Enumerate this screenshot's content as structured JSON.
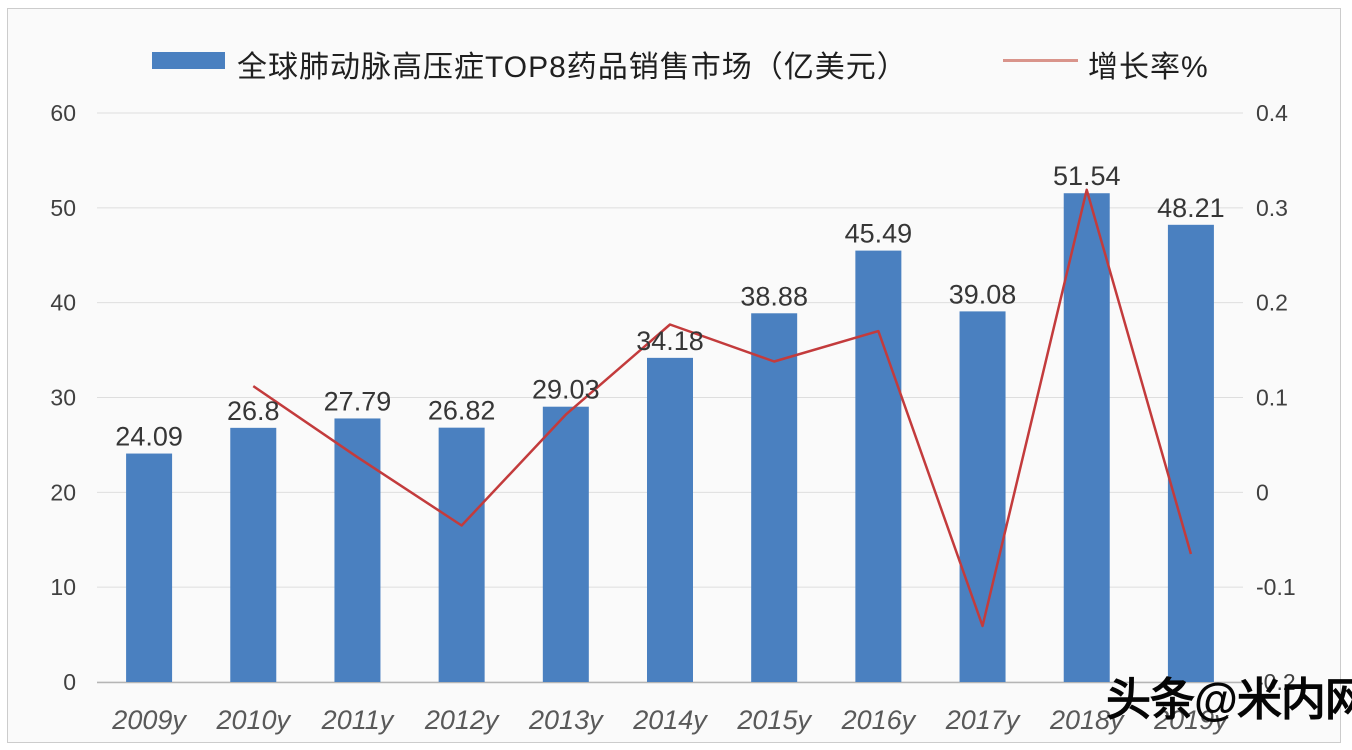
{
  "legend": {
    "bar_label": "全球肺动脉高压症TOP8药品销售市场（亿美元）",
    "line_label": "增长率%"
  },
  "watermark": "头条@米内网",
  "colors": {
    "bar": "#4a80c0",
    "line": "#c33b3c",
    "legend_line": "#d9948b",
    "grid": "#dedede",
    "axis": "#b5b5b5",
    "tick_text": "#404040",
    "category_text": "#595959",
    "data_label": "#363636",
    "frame_bg": "#fafafa",
    "frame_border": "#cccccc"
  },
  "chart_data": {
    "type": "bar",
    "categories": [
      "2009y",
      "2010y",
      "2011y",
      "2012y",
      "2013y",
      "2014y",
      "2015y",
      "2016y",
      "2017y",
      "2018y",
      "2019y"
    ],
    "series": [
      {
        "name": "全球肺动脉高压症TOP8药品销售市场（亿美元）",
        "type": "bar",
        "axis": "left",
        "values": [
          24.09,
          26.8,
          27.79,
          26.82,
          29.03,
          34.18,
          38.88,
          45.49,
          39.08,
          51.54,
          48.21
        ]
      },
      {
        "name": "增长率%",
        "type": "line",
        "axis": "right",
        "values": [
          null,
          0.112,
          0.037,
          -0.035,
          0.082,
          0.177,
          0.138,
          0.17,
          -0.141,
          0.319,
          -0.065
        ]
      }
    ],
    "left_axis": {
      "min": 0,
      "max": 60,
      "ticks": [
        "60",
        "50",
        "40",
        "30",
        "20",
        "10",
        "0"
      ]
    },
    "right_axis": {
      "min": -0.2,
      "max": 0.4,
      "ticks": [
        "0.4",
        "0.3",
        "0.2",
        "0.1",
        "0",
        "-0.1",
        "-0.2"
      ]
    },
    "grid": true,
    "legend_position": "top"
  }
}
